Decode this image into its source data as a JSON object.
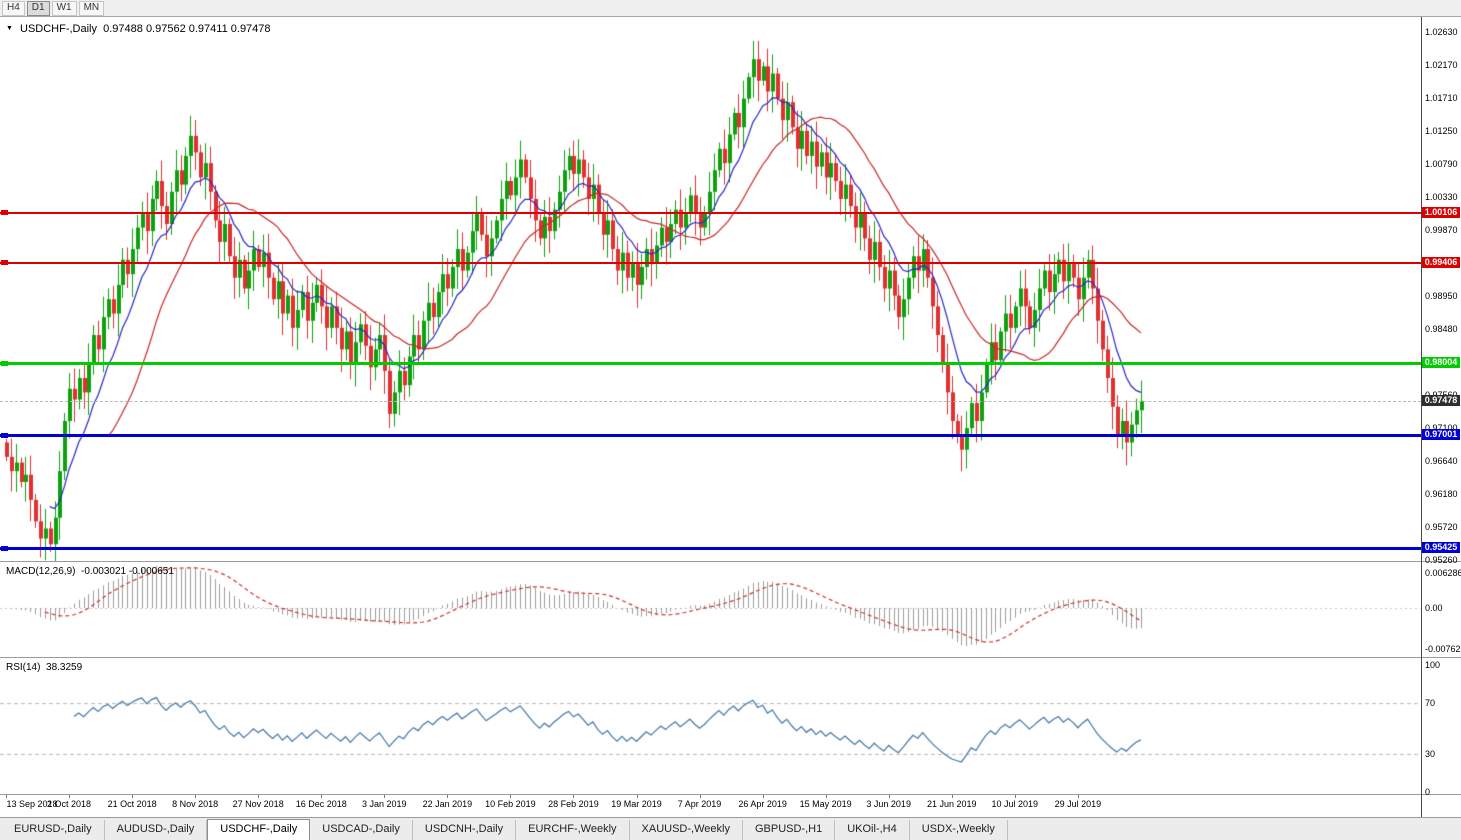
{
  "toolbar": {
    "timeframes": [
      {
        "label": "H4",
        "active": false
      },
      {
        "label": "D1",
        "active": true
      },
      {
        "label": "W1",
        "active": false
      },
      {
        "label": "MN",
        "active": false
      }
    ]
  },
  "chart": {
    "title": "USDCHF-,Daily",
    "ohlc_text": "0.97488 0.97562 0.97411 0.97478",
    "colors": {
      "up": "#0fa00f",
      "down": "#e03030",
      "ma_fast": "#2828c8",
      "ma_slow": "#c82828",
      "macd_hist": "#9c9c9c",
      "macd_signal": "#cc3333",
      "rsi": "#4274a8"
    },
    "price_axis": {
      "labels": [
        "1.02630",
        "1.02170",
        "1.01710",
        "1.01250",
        "1.00790",
        "1.00330",
        "0.99870",
        "0.98950",
        "0.98480",
        "0.97560",
        "0.97100",
        "0.96640",
        "0.96180",
        "0.95720",
        "0.95260"
      ]
    },
    "hlines": [
      {
        "value": "1.00106",
        "level": 1.00106,
        "color": "#dd0000",
        "width": 2
      },
      {
        "value": "0.99406",
        "level": 0.99406,
        "color": "#dd0000",
        "width": 2
      },
      {
        "value": "0.98004",
        "level": 0.98004,
        "color": "#00cc00",
        "width": 3
      },
      {
        "value": "0.97001",
        "level": 0.97001,
        "color": "#0000d6",
        "width": 3
      },
      {
        "value": "0.95425",
        "level": 0.95425,
        "color": "#0000d6",
        "width": 3
      }
    ],
    "price_tag": {
      "value": "0.97478",
      "level": 0.97478,
      "color": "#2e2e2e"
    }
  },
  "macd": {
    "label": "MACD(12,26,9)",
    "values": "-0.003021 -0.000651",
    "axis": [
      "0.006286",
      "0.00",
      "-0.00762"
    ]
  },
  "rsi": {
    "label": "RSI(14)",
    "value": "38.3259",
    "axis": [
      "100",
      "70",
      "30",
      "0"
    ],
    "levels": [
      70,
      30
    ],
    "period": 14
  },
  "tabs": [
    {
      "label": "EURUSD-,Daily",
      "active": false
    },
    {
      "label": "AUDUSD-,Daily",
      "active": false
    },
    {
      "label": "USDCHF-,Daily",
      "active": true
    },
    {
      "label": "USDCAD-,Daily",
      "active": false
    },
    {
      "label": "USDCNH-,Daily",
      "active": false
    },
    {
      "label": "EURCHF-,Weekly",
      "active": false
    },
    {
      "label": "XAUUSD-,Weekly",
      "active": false
    },
    {
      "label": "GBPUSD-,H1",
      "active": false
    },
    {
      "label": "UKOil-,H4",
      "active": false
    },
    {
      "label": "USDX-,Weekly",
      "active": false
    }
  ],
  "chart_data": {
    "type": "candlestick",
    "symbol": "USDCHF-",
    "period": "Daily",
    "title": "USDCHF-,Daily",
    "y_range": [
      0.9526,
      1.0263
    ],
    "last_candle": {
      "open": 0.97488,
      "high": 0.97562,
      "low": 0.97411,
      "close": 0.97478
    },
    "support_resistance_levels": [
      1.00106,
      0.99406,
      0.98004,
      0.97001,
      0.95425
    ],
    "macd": {
      "fast": 12,
      "slow": 26,
      "signal": 9,
      "last_main": -0.003021,
      "last_signal": -0.000651
    },
    "rsi": {
      "period": 14,
      "last": 38.3259
    },
    "x_labels": [
      "13 Sep 2018",
      "2 Oct 2018",
      "21 Oct 2018",
      "8 Nov 2018",
      "27 Nov 2018",
      "16 Dec 2018",
      "3 Jan 2019",
      "22 Jan 2019",
      "10 Feb 2019",
      "28 Feb 2019",
      "19 Mar 2019",
      "7 Apr 2019",
      "26 Apr 2019",
      "15 May 2019",
      "3 Jun 2019",
      "21 Jun 2019",
      "10 Jul 2019",
      "29 Jul 2019"
    ],
    "candles_per_label_interval": 13,
    "closes": [
      0.967,
      0.965,
      0.9662,
      0.9635,
      0.9645,
      0.961,
      0.958,
      0.9556,
      0.957,
      0.9548,
      0.9585,
      0.965,
      0.972,
      0.9765,
      0.975,
      0.978,
      0.976,
      0.98,
      0.984,
      0.982,
      0.9865,
      0.989,
      0.987,
      0.991,
      0.9945,
      0.9925,
      0.996,
      0.999,
      1.001,
      0.9985,
      1.003,
      1.0055,
      1.002,
      0.9995,
      1.004,
      1.007,
      1.005,
      1.009,
      1.0118,
      1.0095,
      1.006,
      1.008,
      1.004,
      1.0,
      0.997,
      0.9995,
      0.995,
      0.992,
      0.9945,
      0.9905,
      0.993,
      0.996,
      0.9935,
      0.9955,
      0.992,
      0.989,
      0.9915,
      0.987,
      0.9895,
      0.985,
      0.9875,
      0.99,
      0.986,
      0.9885,
      0.991,
      0.988,
      0.985,
      0.988,
      0.985,
      0.982,
      0.9845,
      0.98,
      0.983,
      0.9855,
      0.9825,
      0.9795,
      0.982,
      0.984,
      0.979,
      0.973,
      0.976,
      0.979,
      0.977,
      0.981,
      0.984,
      0.982,
      0.986,
      0.9885,
      0.9865,
      0.99,
      0.9925,
      0.9905,
      0.9935,
      0.996,
      0.993,
      0.9955,
      0.9985,
      1.001,
      0.998,
      0.995,
      0.9975,
      1.0,
      1.003,
      1.0055,
      1.0035,
      1.006,
      1.0085,
      1.006,
      1.003,
      1.0,
      0.9975,
      1.0005,
      0.9985,
      1.0015,
      1.004,
      1.007,
      1.009,
      1.0065,
      1.0085,
      1.006,
      1.003,
      1.005,
      1.001,
      0.998,
      1.0,
      0.996,
      0.993,
      0.9955,
      0.992,
      0.994,
      0.991,
      0.9935,
      0.996,
      0.994,
      0.9965,
      0.999,
      0.997,
      0.9995,
      1.0015,
      0.999,
      1.001,
      1.0035,
      1.001,
      0.999,
      1.001,
      1.004,
      1.007,
      1.01,
      1.008,
      1.012,
      1.015,
      1.013,
      1.017,
      1.02,
      1.0225,
      1.0195,
      1.0215,
      1.018,
      1.0205,
      1.017,
      1.014,
      1.0165,
      1.013,
      1.01,
      1.0125,
      1.009,
      1.011,
      1.0075,
      1.0095,
      1.006,
      1.008,
      1.0055,
      1.003,
      1.005,
      1.002,
      0.999,
      1.001,
      0.9975,
      0.9945,
      0.997,
      0.9935,
      0.9905,
      0.993,
      0.9895,
      0.9865,
      0.989,
      0.992,
      0.995,
      0.993,
      0.996,
      0.992,
      0.988,
      0.984,
      0.98,
      0.976,
      0.972,
      0.97,
      0.968,
      0.971,
      0.9745,
      0.972,
      0.976,
      0.98,
      0.983,
      0.9805,
      0.9845,
      0.987,
      0.985,
      0.988,
      0.9905,
      0.988,
      0.985,
      0.9875,
      0.9905,
      0.993,
      0.99,
      0.9925,
      0.9945,
      0.9915,
      0.994,
      0.992,
      0.989,
      0.992,
      0.9945,
      0.9905,
      0.986,
      0.982,
      0.978,
      0.974,
      0.97,
      0.972,
      0.969,
      0.9715,
      0.9735,
      0.97478
    ]
  }
}
